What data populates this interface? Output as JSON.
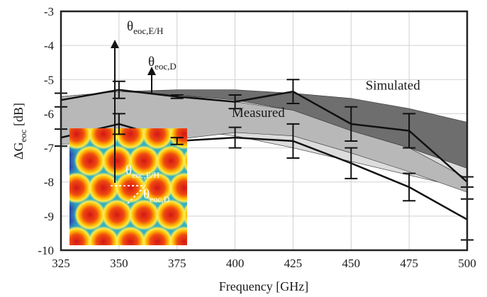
{
  "chart_data": {
    "type": "line",
    "xlabel": "Frequency [GHz]",
    "ylabel_main": "ΔG",
    "ylabel_sub": "eoc",
    "ylabel_unit": " [dB]",
    "xlim": [
      325,
      500
    ],
    "ylim": [
      -10,
      -3
    ],
    "xticks": [
      325,
      350,
      375,
      400,
      425,
      450,
      475,
      500
    ],
    "yticks": [
      -3,
      -4,
      -5,
      -6,
      -7,
      -8,
      -9,
      -10
    ],
    "grid": true,
    "colors": {
      "simulated_band": "#6e6e6e",
      "measured_band": "#b8b8b8",
      "light_band": "#dcdcdc",
      "line": "#111111",
      "grid": "#d0d0d0"
    },
    "bands": [
      {
        "name": "Simulated",
        "x": [
          325,
          350,
          375,
          400,
          425,
          450,
          475,
          500
        ],
        "upper": [
          -5.5,
          -5.35,
          -5.3,
          -5.3,
          -5.4,
          -5.55,
          -5.85,
          -6.25
        ],
        "lower": [
          -6.65,
          -6.55,
          -6.6,
          -6.6,
          -6.75,
          -7.4,
          -7.75,
          -7.9
        ]
      },
      {
        "name": "",
        "x": [
          325,
          350,
          375,
          400,
          425,
          450,
          475,
          500
        ],
        "upper": [
          -5.75,
          -5.5,
          -5.45,
          -5.6,
          -5.9,
          -6.5,
          -7.0,
          -7.6
        ],
        "lower": [
          -6.65,
          -6.4,
          -6.45,
          -6.65,
          -7.0,
          -7.4,
          -7.8,
          -8.2
        ]
      },
      {
        "name": "Measured",
        "x": [
          325,
          350,
          375,
          400,
          425,
          450,
          475,
          500
        ],
        "upper": [
          -5.5,
          -5.35,
          -5.45,
          -5.65,
          -5.9,
          -6.5,
          -7.0,
          -7.9
        ],
        "lower": [
          -6.9,
          -6.8,
          -6.75,
          -6.55,
          -6.65,
          -7.15,
          -7.7,
          -8.3
        ]
      }
    ],
    "series": [
      {
        "x": [
          325,
          350,
          375,
          400,
          425,
          450,
          475,
          500
        ],
        "values": [
          -5.6,
          -5.3,
          -5.5,
          -5.65,
          -5.35,
          -6.3,
          -6.5,
          -8.0
        ],
        "err": [
          0.2,
          0.25,
          0.05,
          0.2,
          0.35,
          0.5,
          0.5,
          0.15
        ]
      },
      {
        "x": [
          325,
          350,
          375,
          400,
          425,
          450,
          475,
          500
        ],
        "values": [
          -6.7,
          -6.3,
          -6.8,
          -6.7,
          -6.8,
          -7.45,
          -8.15,
          -9.1
        ],
        "err": [
          0.25,
          0.3,
          0.1,
          0.3,
          0.5,
          0.45,
          0.4,
          0.6
        ]
      }
    ],
    "annotations": [
      {
        "text": "Simulated",
        "x": 468,
        "y": -5.3
      },
      {
        "text": "Measured",
        "x": 410,
        "y": -6.1
      }
    ],
    "theta_labels": {
      "eh_main": "θ",
      "eh_sub": "eoc,E/H",
      "d_main": "θ",
      "d_sub": "eoc,D"
    },
    "inset": {
      "theta_eh_main": "θ",
      "theta_eh_sub": "eoc,E/H",
      "theta_d_main": "θ",
      "theta_d_sub": "eoc,D"
    }
  }
}
